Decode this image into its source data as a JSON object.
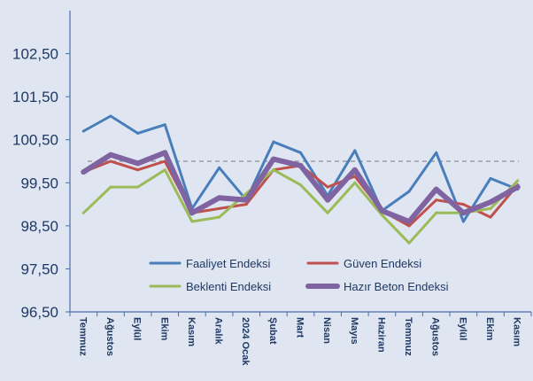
{
  "chart_data": {
    "type": "line",
    "title": "",
    "xlabel": "",
    "ylabel": "",
    "ylim": [
      96.5,
      103.5
    ],
    "y_ticks": [
      "96,50",
      "97,50",
      "98,50",
      "99,50",
      "100,50",
      "101,50",
      "102,50"
    ],
    "y_tick_values": [
      96.5,
      97.5,
      98.5,
      99.5,
      100.5,
      101.5,
      102.5
    ],
    "reference_line": 100,
    "categories": [
      "Temmuz",
      "Ağustos",
      "Eylül",
      "Ekim",
      "Kasım",
      "Aralık",
      "2024 Ocak",
      "Şubat",
      "Mart",
      "Nisan",
      "Mayıs",
      "Haziran",
      "Temmuz",
      "Ağustos",
      "Eylül",
      "Ekim",
      "Kasım"
    ],
    "series": [
      {
        "name": "Faaliyet Endeksi",
        "color": "#4a7ebb",
        "values": [
          100.7,
          101.05,
          100.65,
          100.85,
          98.9,
          99.85,
          99.1,
          100.45,
          100.2,
          99.2,
          100.25,
          98.85,
          99.3,
          100.2,
          98.6,
          99.6,
          99.35
        ]
      },
      {
        "name": "Güven Endeksi",
        "color": "#c0504d",
        "values": [
          99.75,
          100.0,
          99.8,
          100.0,
          98.8,
          98.9,
          99.0,
          99.8,
          99.9,
          99.4,
          99.65,
          98.85,
          98.5,
          99.1,
          99.0,
          98.7,
          99.45
        ]
      },
      {
        "name": "Beklenti Endeksi",
        "color": "#9bbb59",
        "values": [
          98.8,
          99.4,
          99.4,
          99.8,
          98.6,
          98.7,
          99.25,
          99.8,
          99.45,
          98.8,
          99.5,
          98.75,
          98.1,
          98.8,
          98.8,
          98.9,
          99.55
        ]
      },
      {
        "name": "Hazır Beton Endeksi",
        "color": "#8064a2",
        "values": [
          99.75,
          100.15,
          99.95,
          100.2,
          98.8,
          99.15,
          99.1,
          100.05,
          99.9,
          99.1,
          99.8,
          98.85,
          98.6,
          99.35,
          98.8,
          99.05,
          99.4
        ]
      }
    ],
    "legend_position": "bottom-center"
  }
}
